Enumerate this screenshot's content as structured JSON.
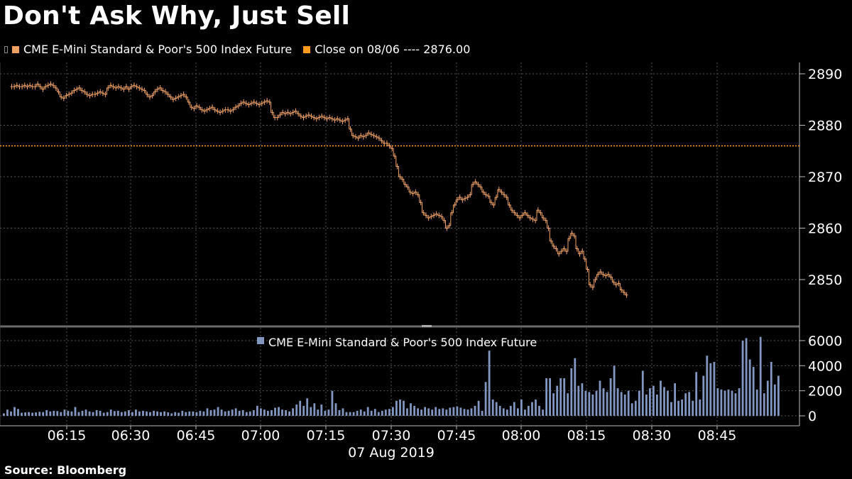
{
  "header": {
    "title": "Don't Ask Why, Just Sell",
    "legend_price": "CME E-Mini Standard & Poor's 500 Index Future",
    "legend_close": "Close on 08/06 ---- 2876.00"
  },
  "footer": {
    "source": "Source: Bloomberg"
  },
  "colors": {
    "price": "#f4a46a",
    "close_line": "#ff9a1a",
    "volume": "#8196c0",
    "grid": "#555555",
    "background": "#000000"
  },
  "chart_data": [
    {
      "type": "line",
      "title": "Don't Ask Why, Just Sell",
      "series": [
        {
          "name": "CME E-Mini Standard & Poor's 500 Index Future"
        }
      ],
      "x_tick_labels": [
        "06:15",
        "06:30",
        "06:45",
        "07:00",
        "07:15",
        "07:30",
        "07:45",
        "08:00",
        "08:15",
        "08:30",
        "08:45"
      ],
      "xlabel": "07 Aug 2019",
      "ylim": [
        2845,
        2892
      ],
      "y_ticks": [
        2890,
        2880,
        2870,
        2860,
        2850
      ],
      "close_reference": {
        "label": "Close on 08/06",
        "value": 2876.0
      },
      "interval_minutes": 1,
      "start_time": "06:02",
      "close": [
        2887.5,
        2887.5,
        2887.75,
        2887.5,
        2887.5,
        2887.75,
        2887.5,
        2887.75,
        2887.5,
        2887.5,
        2888,
        2887.5,
        2887,
        2887.5,
        2887.75,
        2888,
        2887.75,
        2887.25,
        2886.5,
        2885.5,
        2885.25,
        2885.75,
        2886,
        2886.25,
        2886.75,
        2887,
        2887.25,
        2886.75,
        2886.5,
        2886,
        2885.75,
        2886,
        2886,
        2886.25,
        2886.5,
        2886.25,
        2886,
        2887.25,
        2887.75,
        2887.5,
        2887.25,
        2887.5,
        2887.25,
        2887,
        2887.5,
        2887,
        2887.5,
        2887.75,
        2887.5,
        2887.25,
        2887,
        2886.75,
        2886,
        2885.5,
        2885.75,
        2886.5,
        2887,
        2887.25,
        2886.75,
        2886.5,
        2886,
        2885.5,
        2885,
        2885.25,
        2885.5,
        2885.75,
        2886,
        2885.5,
        2884.5,
        2883.5,
        2883.25,
        2883.75,
        2883.5,
        2883,
        2882.75,
        2883,
        2883.25,
        2883.5,
        2883,
        2882.75,
        2882.5,
        2882.75,
        2883,
        2883,
        2882.75,
        2883,
        2883.5,
        2883.75,
        2884.25,
        2884.5,
        2884.25,
        2884,
        2884.25,
        2884.5,
        2884.25,
        2884,
        2884.25,
        2884.5,
        2884.75,
        2884.5,
        2882.5,
        2881.5,
        2881.5,
        2882,
        2882.5,
        2882.25,
        2882.5,
        2882.25,
        2882.5,
        2882.75,
        2882.25,
        2881.75,
        2881.5,
        2881.75,
        2882,
        2881.75,
        2881.5,
        2881.25,
        2881.5,
        2881.75,
        2881.5,
        2881.25,
        2881.5,
        2881.25,
        2881,
        2881.25,
        2881,
        2880.75,
        2881,
        2881.25,
        2879.25,
        2878,
        2877.75,
        2877.5,
        2878,
        2877.75,
        2878,
        2878.5,
        2878.25,
        2878,
        2877.75,
        2877.5,
        2877,
        2876.5,
        2876.5,
        2876,
        2875.5,
        2874,
        2872,
        2870,
        2869.5,
        2868.5,
        2868,
        2867,
        2866.75,
        2867,
        2866.5,
        2865,
        2863,
        2862.5,
        2862,
        2862.25,
        2862.5,
        2862.75,
        2862.5,
        2862.25,
        2861.5,
        2860,
        2860.5,
        2863,
        2864.5,
        2865.5,
        2866,
        2865.5,
        2865.75,
        2866,
        2866.5,
        2868.5,
        2869,
        2868.5,
        2868,
        2867,
        2866.5,
        2866.25,
        2865,
        2864.5,
        2866,
        2867.5,
        2867,
        2866.5,
        2866,
        2864.5,
        2863.5,
        2863,
        2862.5,
        2862,
        2862.5,
        2863,
        2862.5,
        2862,
        2861.75,
        2861.5,
        2863.5,
        2863,
        2862,
        2861.5,
        2860,
        2857.5,
        2856.5,
        2856,
        2855,
        2855.5,
        2856,
        2855.5,
        2858,
        2859,
        2858.5,
        2856,
        2855,
        2855.5,
        2854,
        2852,
        2849,
        2848.5,
        2850,
        2851,
        2851.5,
        2851,
        2850.75,
        2851,
        2850.5,
        2849.5,
        2849,
        2849.25,
        2848,
        2847.5,
        2847
      ],
      "volume_panel": {
        "series_name": "CME E-Mini Standard & Poor's 500 Index Future",
        "y_ticks": [
          6000,
          4000,
          2000,
          0
        ],
        "ylim": [
          0,
          6600
        ],
        "values": [
          200,
          500,
          350,
          700,
          550,
          250,
          280,
          300,
          250,
          280,
          320,
          300,
          450,
          350,
          400,
          380,
          300,
          500,
          400,
          350,
          700,
          300,
          400,
          500,
          350,
          300,
          450,
          400,
          250,
          300,
          500,
          380,
          400,
          300,
          350,
          450,
          300,
          500,
          350,
          400,
          350,
          300,
          400,
          350,
          300,
          350,
          280,
          200,
          300,
          250,
          400,
          300,
          350,
          350,
          300,
          400,
          350,
          600,
          450,
          500,
          700,
          500,
          350,
          400,
          500,
          600,
          400,
          450,
          300,
          350,
          450,
          800,
          600,
          500,
          400,
          450,
          650,
          700,
          500,
          450,
          350,
          600,
          900,
          1200,
          800,
          1400,
          700,
          1000,
          500,
          900,
          400,
          500,
          2000,
          1000,
          450,
          600,
          300,
          300,
          300,
          400,
          500,
          350,
          700,
          400,
          550,
          300,
          400,
          500,
          550,
          700,
          1200,
          1300,
          1200,
          600,
          1000,
          800,
          600,
          500,
          700,
          600,
          500,
          700,
          550,
          600,
          500,
          650,
          700,
          750,
          650,
          550,
          500,
          600,
          800,
          1200,
          400,
          2700,
          5200,
          1300,
          1100,
          800,
          600,
          500,
          800,
          1100,
          600,
          1300,
          500,
          800,
          1100,
          1300,
          800,
          500,
          3000,
          3000,
          1800,
          2400,
          3000,
          3000,
          1800,
          3800,
          4600,
          2400,
          2600,
          2000,
          1900,
          1700,
          2000,
          2800,
          2200,
          1900,
          3000,
          4000,
          2200,
          1900,
          1700,
          2000,
          1000,
          1200,
          2000,
          3600,
          1700,
          2200,
          2400,
          1700,
          2800,
          2300,
          2000,
          1100,
          2600,
          1200,
          1300,
          1800,
          1900,
          1200,
          3500,
          1300,
          3200,
          4800,
          4200,
          4300,
          2200,
          2100,
          2000,
          2100,
          2000,
          1800,
          2200,
          6000,
          6200,
          4500,
          3900,
          2100,
          6300,
          1800,
          2800,
          4300,
          2500,
          3200
        ]
      }
    }
  ]
}
